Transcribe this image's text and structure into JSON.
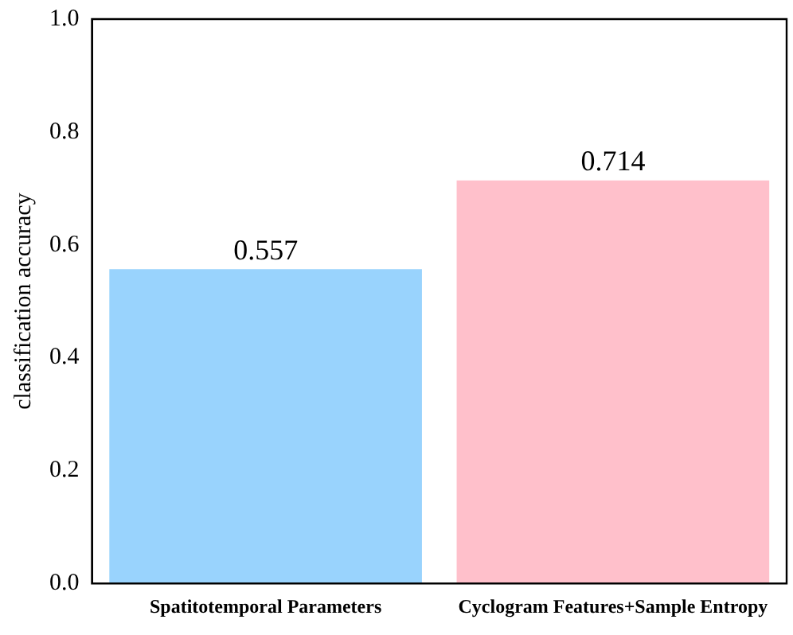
{
  "chart_data": {
    "type": "bar",
    "ylabel": "classification accuracy",
    "categories": [
      "Spatitotemporal Parameters",
      "Cyclogram Features+Sample Entropy"
    ],
    "values": [
      0.557,
      0.714
    ],
    "colors": [
      "#99d3fd",
      "#ffc0cb"
    ],
    "ylim": [
      0,
      1
    ],
    "yticks": [
      {
        "value": 0,
        "label": "0.0"
      },
      {
        "value": 0.2,
        "label": "0.2"
      },
      {
        "value": 0.4,
        "label": "0.4"
      },
      {
        "value": 0.6,
        "label": "0.6"
      },
      {
        "value": 0.8,
        "label": "0.8"
      },
      {
        "value": 1,
        "label": "1.0"
      }
    ],
    "data_labels": true,
    "grid": false,
    "legend": false
  }
}
